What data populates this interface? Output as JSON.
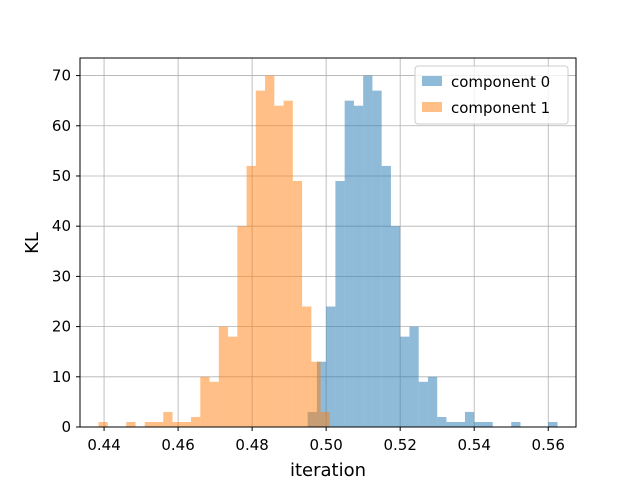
{
  "chart_data": {
    "type": "histogram",
    "xlabel": "iteration",
    "ylabel": "KL",
    "xlim": [
      0.4335,
      0.5675
    ],
    "ylim": [
      0,
      73.5
    ],
    "xticks": [
      0.44,
      0.46,
      0.48,
      0.5,
      0.52,
      0.54,
      0.56
    ],
    "xtick_labels": [
      "0.44",
      "0.46",
      "0.48",
      "0.50",
      "0.52",
      "0.54",
      "0.56"
    ],
    "yticks": [
      0,
      10,
      20,
      30,
      40,
      50,
      60,
      70
    ],
    "ytick_labels": [
      "0",
      "10",
      "20",
      "30",
      "40",
      "50",
      "60",
      "70"
    ],
    "grid": true,
    "legend_position": "top-right",
    "series": [
      {
        "name": "component 0",
        "color": "#1f77b4",
        "opacity": 0.5,
        "bins": [
          [
            0.495,
            0.4975,
            3
          ],
          [
            0.4975,
            0.5,
            13
          ],
          [
            0.5,
            0.5025,
            24
          ],
          [
            0.5025,
            0.505,
            49
          ],
          [
            0.505,
            0.5075,
            65
          ],
          [
            0.5075,
            0.51,
            64
          ],
          [
            0.51,
            0.5125,
            70
          ],
          [
            0.5125,
            0.515,
            67
          ],
          [
            0.515,
            0.5175,
            52
          ],
          [
            0.5175,
            0.52,
            40
          ],
          [
            0.52,
            0.5225,
            18
          ],
          [
            0.5225,
            0.525,
            20
          ],
          [
            0.525,
            0.5275,
            9
          ],
          [
            0.5275,
            0.53,
            10
          ],
          [
            0.53,
            0.5325,
            2
          ],
          [
            0.5325,
            0.535,
            1
          ],
          [
            0.535,
            0.5375,
            1
          ],
          [
            0.5375,
            0.54,
            3
          ],
          [
            0.54,
            0.5425,
            1
          ],
          [
            0.5425,
            0.545,
            1
          ],
          [
            0.55,
            0.5525,
            1
          ],
          [
            0.56,
            0.5625,
            1
          ]
        ]
      },
      {
        "name": "component 1",
        "color": "#ff7f0e",
        "opacity": 0.5,
        "bins": [
          [
            0.4385,
            0.441,
            1
          ],
          [
            0.446,
            0.4485,
            1
          ],
          [
            0.451,
            0.4535,
            1
          ],
          [
            0.4535,
            0.456,
            1
          ],
          [
            0.456,
            0.4585,
            3
          ],
          [
            0.4585,
            0.461,
            1
          ],
          [
            0.461,
            0.4635,
            1
          ],
          [
            0.4635,
            0.466,
            2
          ],
          [
            0.466,
            0.4685,
            10
          ],
          [
            0.4685,
            0.471,
            9
          ],
          [
            0.471,
            0.4735,
            20
          ],
          [
            0.4735,
            0.476,
            18
          ],
          [
            0.476,
            0.4785,
            40
          ],
          [
            0.4785,
            0.481,
            52
          ],
          [
            0.481,
            0.4835,
            67
          ],
          [
            0.4835,
            0.486,
            70
          ],
          [
            0.486,
            0.4885,
            64
          ],
          [
            0.4885,
            0.491,
            65
          ],
          [
            0.491,
            0.4935,
            49
          ],
          [
            0.4935,
            0.496,
            24
          ],
          [
            0.496,
            0.4985,
            13
          ],
          [
            0.4985,
            0.501,
            3
          ]
        ]
      }
    ]
  }
}
